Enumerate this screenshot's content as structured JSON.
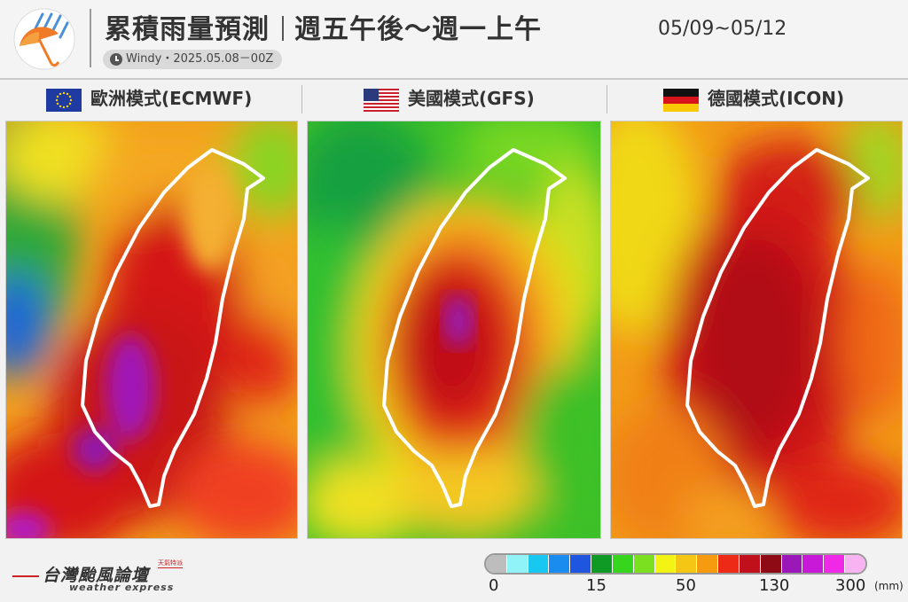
{
  "header": {
    "title_main": "累積雨量預測",
    "title_period": "週五午後〜週一上午",
    "date_range": "05/09~05/12",
    "source": "Windy・2025.05.08－00Z"
  },
  "models": [
    {
      "label": "歐洲模式(ECMWF)",
      "flag": "eu-flag-icon"
    },
    {
      "label": "美國模式(GFS)",
      "flag": "us-flag-icon"
    },
    {
      "label": "德國模式(ICON)",
      "flag": "de-flag-icon"
    }
  ],
  "legend": {
    "colors": [
      "#bdbdbd",
      "#8ff3f7",
      "#18c8f0",
      "#1a8cf0",
      "#1f56e0",
      "#0f9a26",
      "#36d61e",
      "#7be020",
      "#f4f414",
      "#f6c614",
      "#f69a10",
      "#ec2a16",
      "#c0101c",
      "#8e0a14",
      "#9a18b8",
      "#c818d8",
      "#f028e8",
      "#f8b4f2"
    ],
    "ticks": [
      "0",
      "15",
      "50",
      "130",
      "300"
    ],
    "unit": "(mm)"
  },
  "brand": {
    "name": "台灣颱風論壇",
    "sub": "weather express",
    "tag": "天氣特派"
  }
}
